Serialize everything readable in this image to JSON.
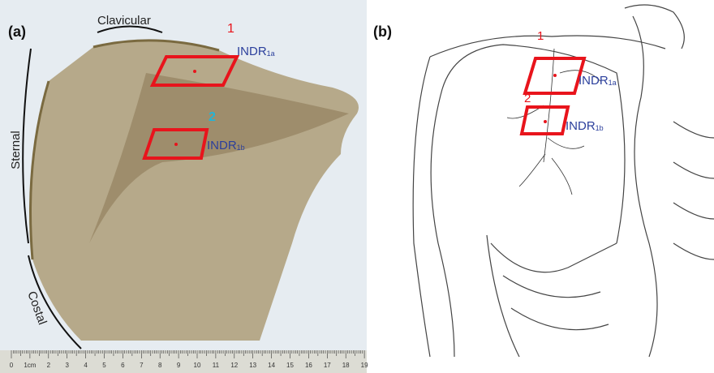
{
  "panels": [
    {
      "label": "(a)",
      "regions": [
        "Clavicular",
        "Sternal",
        "Costal"
      ],
      "markers": [
        "1",
        "2"
      ],
      "zones": [
        {
          "base": "INDR",
          "sub": "1a"
        },
        {
          "base": "INDR",
          "sub": "1b"
        }
      ],
      "ruler": [
        "0",
        "1cm",
        "2",
        "3",
        "4",
        "5",
        "6",
        "7",
        "8",
        "9",
        "10",
        "11",
        "12",
        "13",
        "14",
        "15",
        "16",
        "17",
        "18",
        "19"
      ]
    },
    {
      "label": "(b)",
      "markers": [
        "1",
        "2"
      ],
      "zones": [
        {
          "base": "INDR",
          "sub": "1a"
        },
        {
          "base": "INDR",
          "sub": "1b"
        }
      ]
    }
  ]
}
